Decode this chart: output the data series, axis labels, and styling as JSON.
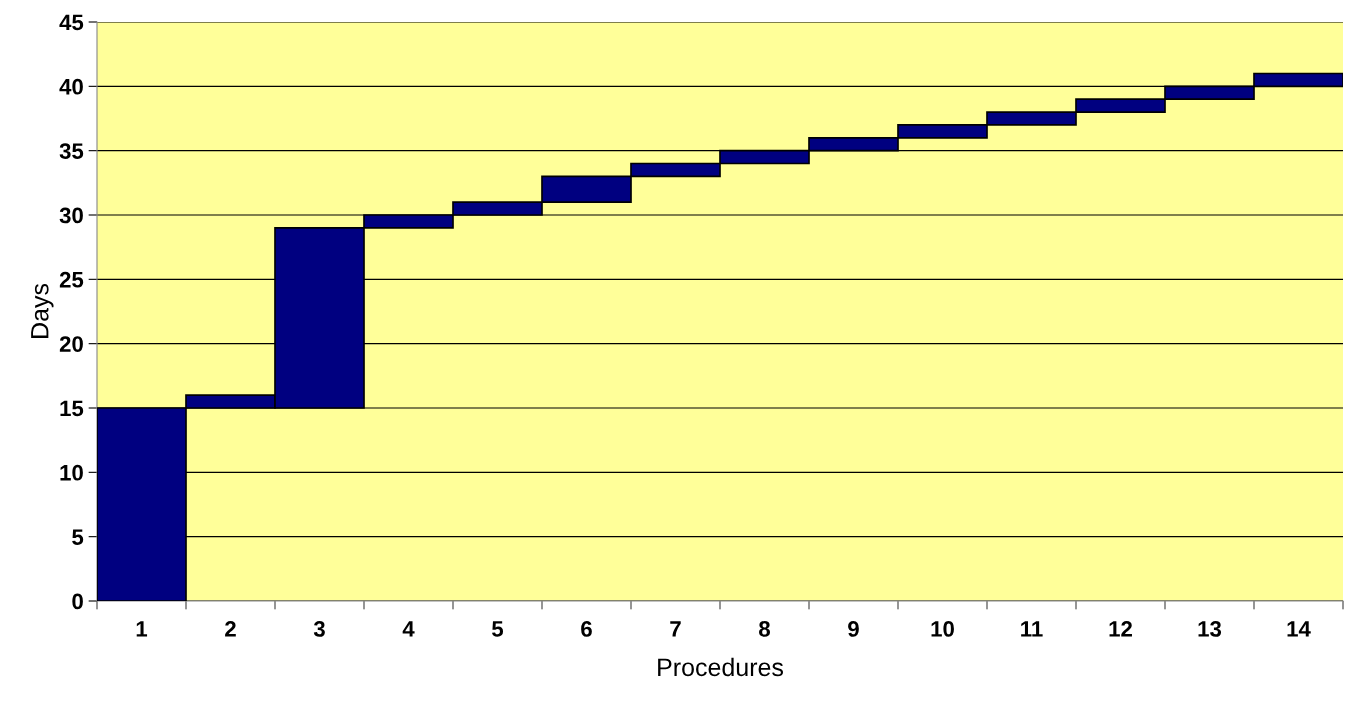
{
  "chart_data": {
    "type": "bar",
    "xlabel": "Procedures",
    "ylabel": "Days",
    "categories": [
      "1",
      "2",
      "3",
      "4",
      "5",
      "6",
      "7",
      "8",
      "9",
      "10",
      "11",
      "12",
      "13",
      "14"
    ],
    "base": [
      0,
      15,
      15,
      29,
      30,
      31,
      33,
      34,
      35,
      36,
      37,
      38,
      39,
      40
    ],
    "values": [
      15,
      1,
      14,
      1,
      1,
      2,
      1,
      1,
      1,
      1,
      1,
      1,
      1,
      1
    ],
    "color": "#000080",
    "ylim": [
      0,
      45
    ],
    "yticks": [
      0,
      5,
      10,
      15,
      20,
      25,
      30,
      35,
      40,
      45
    ],
    "grid": "y"
  }
}
